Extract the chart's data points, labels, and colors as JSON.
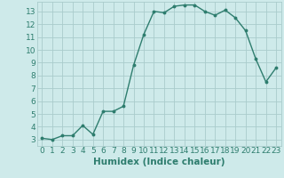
{
  "xlabel": "Humidex (Indice chaleur)",
  "ylabel": "",
  "x": [
    0,
    1,
    2,
    3,
    4,
    5,
    6,
    7,
    8,
    9,
    10,
    11,
    12,
    13,
    14,
    15,
    16,
    17,
    18,
    19,
    20,
    21,
    22,
    23
  ],
  "y": [
    3.1,
    3.0,
    3.3,
    3.3,
    4.1,
    3.4,
    5.2,
    5.2,
    5.6,
    8.8,
    11.2,
    13.0,
    12.9,
    13.4,
    13.5,
    13.5,
    13.0,
    12.7,
    13.1,
    12.5,
    11.5,
    9.3,
    7.5,
    8.6
  ],
  "line_color": "#2e7d6e",
  "marker": "o",
  "marker_size": 1.8,
  "line_width": 1.0,
  "bg_color": "#ceeaea",
  "grid_color": "#aacccc",
  "tick_color": "#2e7d6e",
  "label_color": "#2e7d6e",
  "xlim": [
    -0.5,
    23.5
  ],
  "ylim": [
    2.5,
    13.75
  ],
  "yticks": [
    3,
    4,
    5,
    6,
    7,
    8,
    9,
    10,
    11,
    12,
    13
  ],
  "xticks": [
    0,
    1,
    2,
    3,
    4,
    5,
    6,
    7,
    8,
    9,
    10,
    11,
    12,
    13,
    14,
    15,
    16,
    17,
    18,
    19,
    20,
    21,
    22,
    23
  ],
  "xlabel_fontsize": 7.5,
  "tick_fontsize": 6.5
}
